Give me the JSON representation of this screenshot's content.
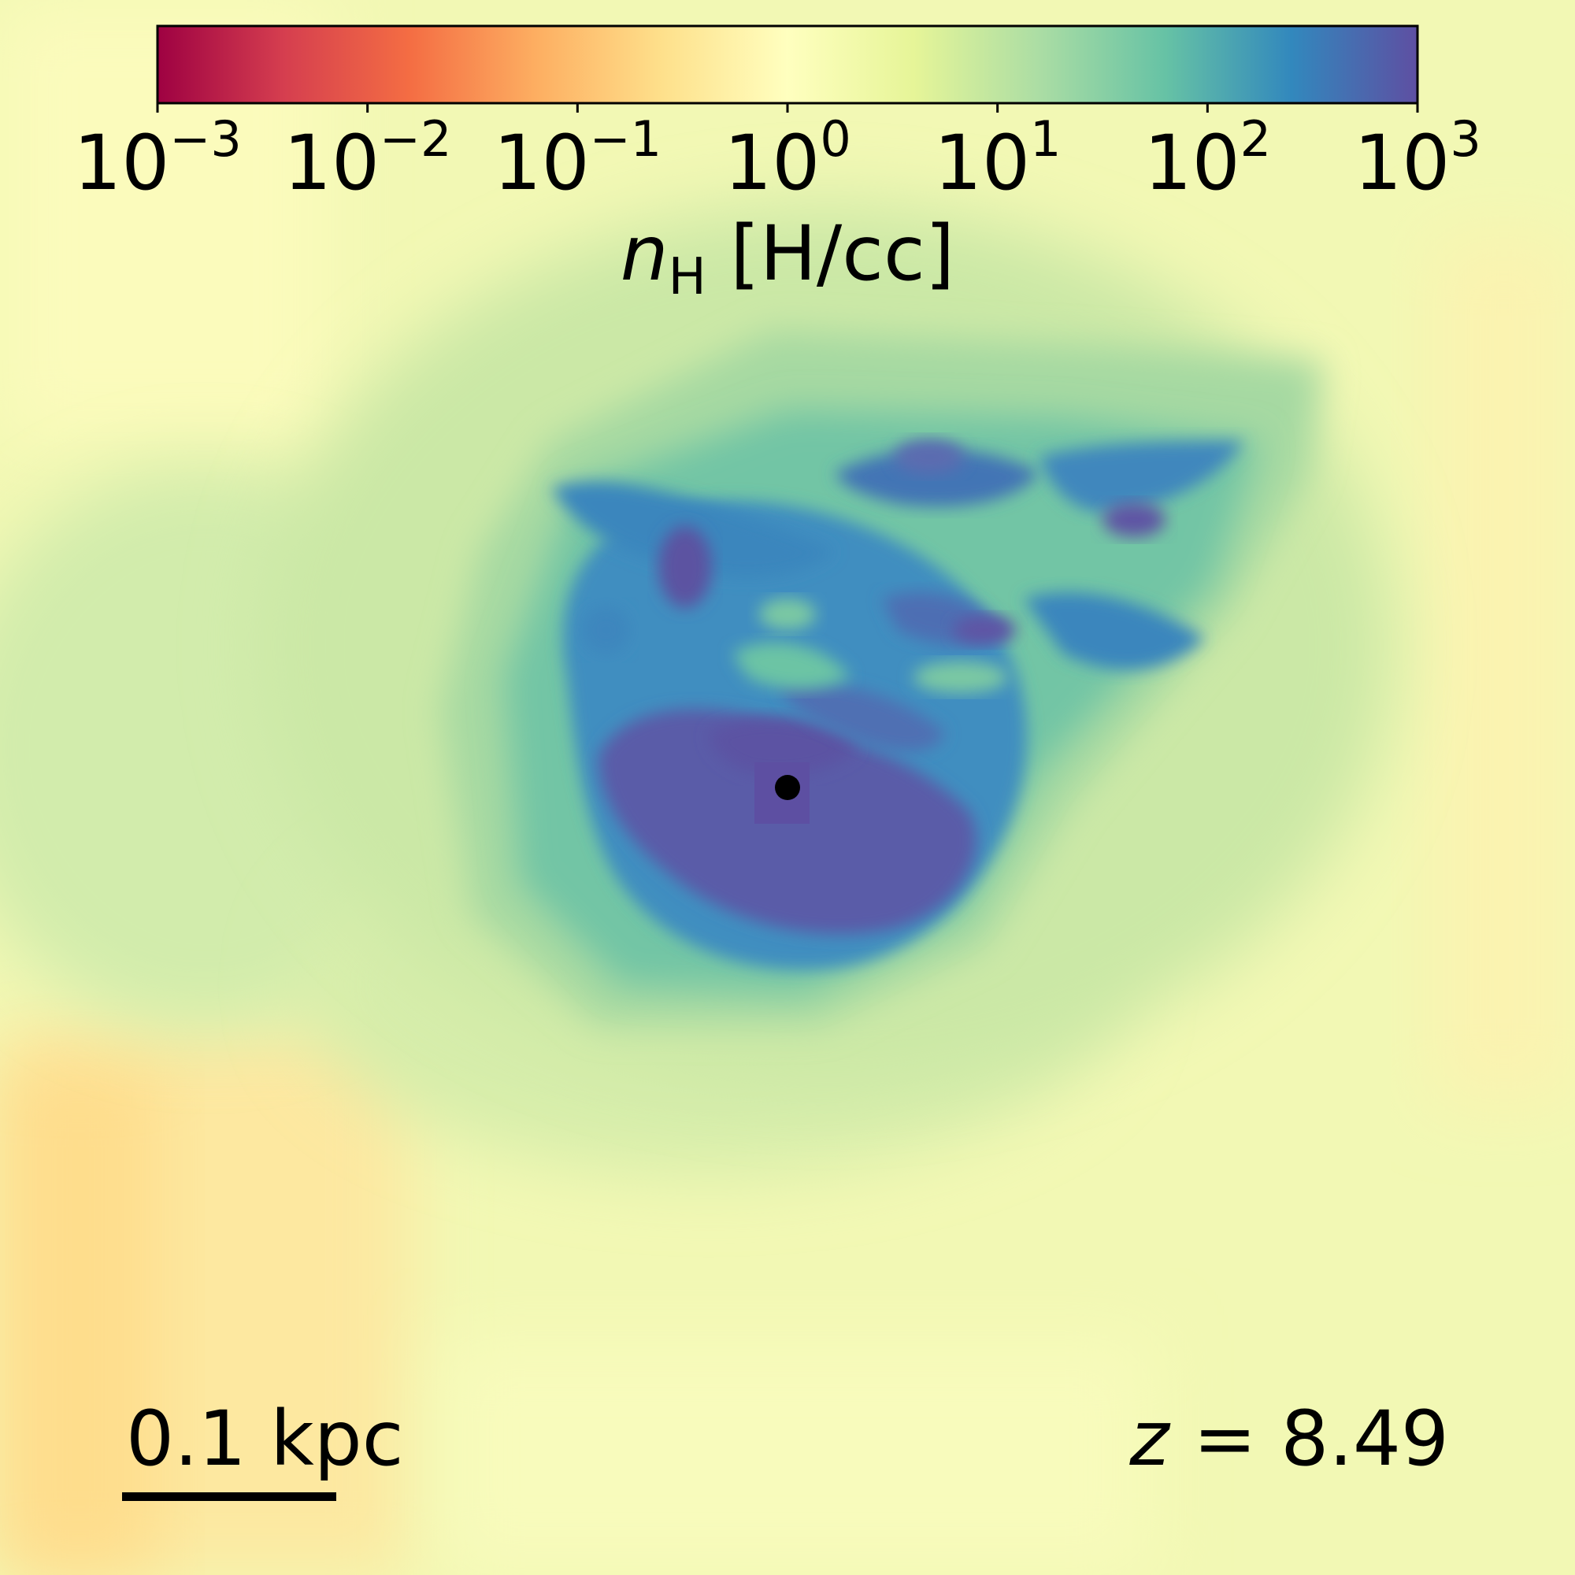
{
  "colorbar": {
    "label_symbol": "n",
    "label_subscript": "H",
    "label_units": "[H/cc]",
    "scale": "log",
    "range": [
      0.001,
      1000
    ],
    "colormap": [
      "#9e0142",
      "#d53e4f",
      "#f46d43",
      "#fdae61",
      "#fee08b",
      "#ffffbf",
      "#e6f598",
      "#abdda4",
      "#66c2a5",
      "#3288bd",
      "#5e4fa2"
    ],
    "ticks": [
      {
        "base": "10",
        "exp": "−3"
      },
      {
        "base": "10",
        "exp": "−2"
      },
      {
        "base": "10",
        "exp": "−1"
      },
      {
        "base": "10",
        "exp": "0"
      },
      {
        "base": "10",
        "exp": "1"
      },
      {
        "base": "10",
        "exp": "2"
      },
      {
        "base": "10",
        "exp": "3"
      }
    ]
  },
  "scale_bar": {
    "label": "0.1 kpc"
  },
  "redshift": {
    "symbol": "z",
    "equals": "=",
    "value": "8.49"
  },
  "colors": {
    "background": "#f2f8b4",
    "marker": "#000000"
  }
}
